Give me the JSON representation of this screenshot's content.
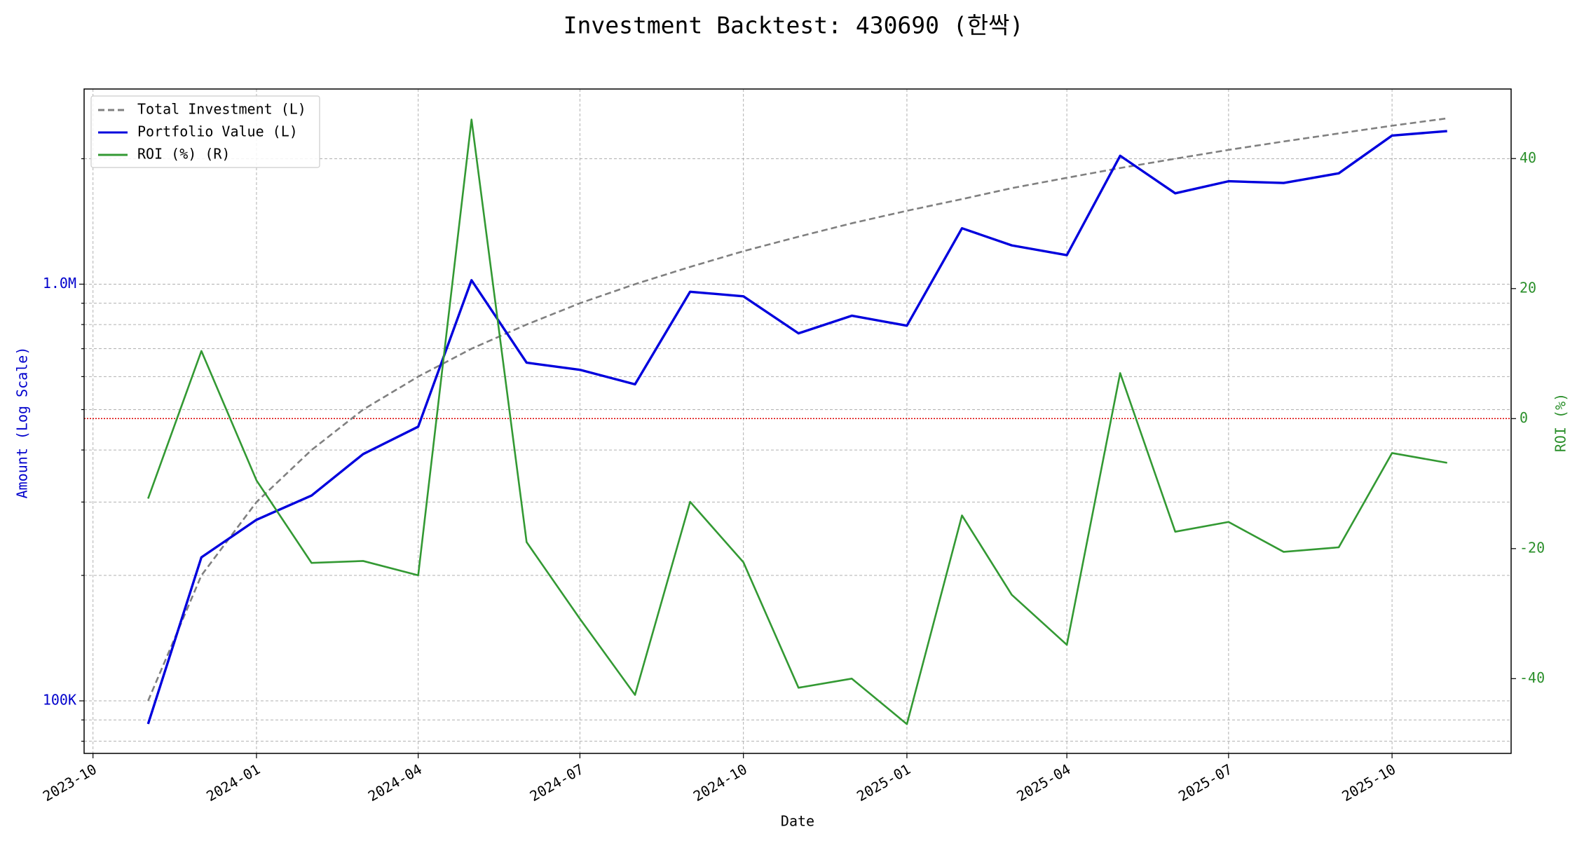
{
  "chart_data": {
    "type": "line",
    "title": "Investment Backtest: 430690 (한싹)",
    "xlabel": "Date",
    "ylabel": "Amount (Log Scale)",
    "y2label": "ROI (%)",
    "x": [
      "2023-11",
      "2023-12",
      "2024-01",
      "2024-02",
      "2024-03",
      "2024-04",
      "2024-05",
      "2024-06",
      "2024-07",
      "2024-08",
      "2024-09",
      "2024-10",
      "2024-11",
      "2024-12",
      "2025-01",
      "2025-02",
      "2025-03",
      "2025-04",
      "2025-05",
      "2025-06",
      "2025-07",
      "2025-08",
      "2025-09",
      "2025-10",
      "2025-11"
    ],
    "series": [
      {
        "name": "Total Investment (L)",
        "color": "#808080",
        "dash": true,
        "axis": "y",
        "values": [
          100000,
          200000,
          300000,
          400000,
          500000,
          600000,
          700000,
          800000,
          900000,
          1000000,
          1100000,
          1200000,
          1300000,
          1400000,
          1500000,
          1600000,
          1700000,
          1800000,
          1900000,
          2000000,
          2100000,
          2200000,
          2300000,
          2400000,
          2500000
        ]
      },
      {
        "name": "Portfolio Value (L)",
        "color": "#0000dd",
        "dash": false,
        "axis": "y",
        "values": [
          88000,
          221000,
          272000,
          311000,
          391000,
          455000,
          1022000,
          648000,
          623000,
          575000,
          959000,
          935000,
          762000,
          840000,
          795000,
          1362000,
          1239000,
          1174000,
          2033000,
          1652000,
          1766000,
          1749000,
          1845000,
          2273000,
          2330000
        ]
      },
      {
        "name": "ROI (%) (R)",
        "color": "#339933",
        "dash": false,
        "axis": "y2",
        "values": [
          -12.3,
          10.4,
          -9.5,
          -22.2,
          -21.9,
          -24.1,
          46.0,
          -19.0,
          -30.8,
          -42.5,
          -12.8,
          -22.1,
          -41.4,
          -40.0,
          -47.0,
          -14.9,
          -27.1,
          -34.8,
          7.0,
          -17.4,
          -15.9,
          -20.5,
          -19.8,
          -5.3,
          -6.8
        ]
      }
    ],
    "xlim": [
      "2023-09-26",
      "2025-12-07"
    ],
    "xticks": [
      "2023-10",
      "2024-01",
      "2024-04",
      "2024-07",
      "2024-10",
      "2025-01",
      "2025-04",
      "2025-07",
      "2025-10"
    ],
    "yscale": "log",
    "ylim": [
      74800,
      2940000
    ],
    "yticks": [
      {
        "value": 100000,
        "label": "100K"
      },
      {
        "value": 1000000,
        "label": "1.0M"
      }
    ],
    "yminorticks": [
      80000,
      90000,
      200000,
      300000,
      400000,
      500000,
      600000,
      700000,
      800000,
      900000,
      2000000
    ],
    "y2lim": [
      -51.5,
      50.7
    ],
    "y2ticks": [
      -40,
      -20,
      0,
      20,
      40
    ],
    "hline": {
      "value": 0,
      "axis": "y2",
      "color": "#dd0000"
    },
    "grid": true,
    "legend": "upper left"
  }
}
